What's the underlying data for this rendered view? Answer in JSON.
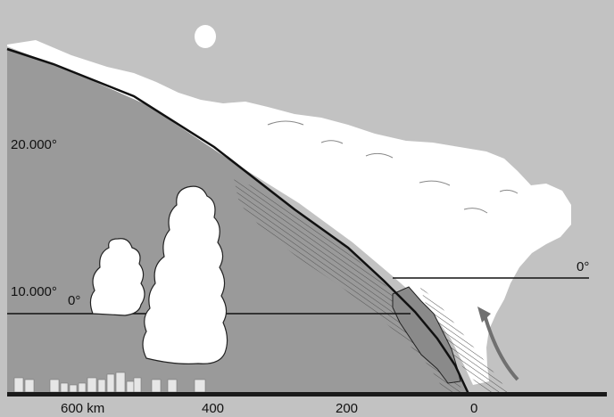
{
  "labels": {
    "alt_high": "20.000°",
    "alt_low": "10.000°",
    "iso_left": "0°",
    "iso_right": "0°"
  },
  "axis": {
    "ticks": [
      "600 km",
      "400",
      "200",
      "0"
    ]
  },
  "colors": {
    "sky": "#c2c2c2",
    "cold_air_mass": "#9a9a9a",
    "cloud": "#ffffff",
    "ground": "#1a1a1a",
    "arrow": "#707070"
  }
}
